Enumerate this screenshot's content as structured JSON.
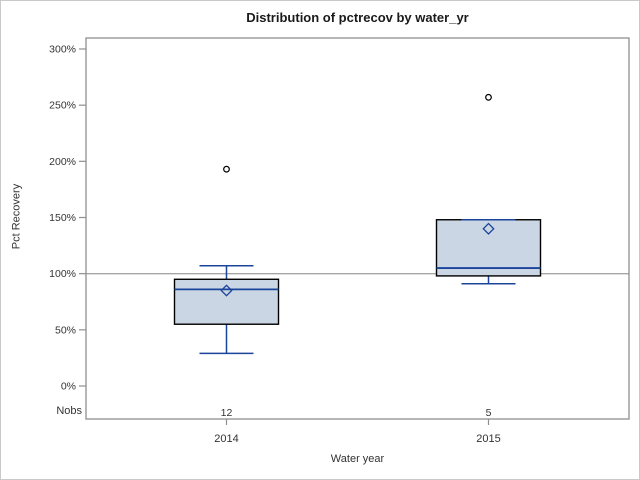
{
  "title": "Distribution of pctrecov by water_yr",
  "y_axis": {
    "label": "Pct Recovery"
  },
  "x_axis": {
    "label": "Water year"
  },
  "nobs_row": {
    "label": "Nobs"
  },
  "chart_data": {
    "type": "box",
    "title": "Distribution of pctrecov by water_yr",
    "xlabel": "Water year",
    "ylabel": "Pct Recovery",
    "ylim": [
      0,
      300
    ],
    "y_tick_step": 50,
    "y_ticks": [
      {
        "value": 0,
        "label": "0%"
      },
      {
        "value": 50,
        "label": "50%"
      },
      {
        "value": 100,
        "label": "100%"
      },
      {
        "value": 150,
        "label": "150%"
      },
      {
        "value": 200,
        "label": "200%"
      },
      {
        "value": 250,
        "label": "250%"
      },
      {
        "value": 300,
        "label": "300%"
      }
    ],
    "reference_line": 100,
    "grid": false,
    "legend": "none",
    "categories": [
      "2014",
      "2015"
    ],
    "nobs_label": "Nobs",
    "series": [
      {
        "category": "2014",
        "nobs": "12",
        "whisker_low": 29,
        "q1": 55,
        "median": 86,
        "mean": 85,
        "q3": 95,
        "whisker_high": 107,
        "outliers": [
          193
        ]
      },
      {
        "category": "2015",
        "nobs": "5",
        "whisker_low": 91,
        "q1": 98,
        "median": 105,
        "mean": 140,
        "q3": 148,
        "whisker_high": 148,
        "outliers": [
          257
        ]
      }
    ],
    "colors": {
      "box_fill": "#cbd6e4",
      "box_border": "#000000",
      "line": "#1b449b",
      "mean_marker": "#1b449b",
      "outlier": "#000000",
      "reference_line": "#a6a6a6",
      "frame": "#8f8f8f",
      "tick": "#8f8f8f",
      "text": "#333333"
    }
  }
}
